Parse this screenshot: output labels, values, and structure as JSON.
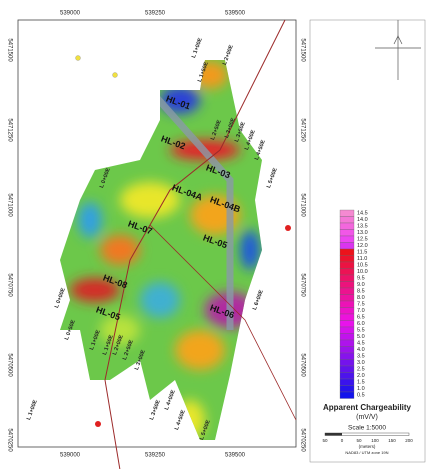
{
  "axes": {
    "top": [
      "539000",
      "539250",
      "539500"
    ],
    "bottom": [
      "539000",
      "539250",
      "539500"
    ],
    "left": [
      "5471500",
      "5471250",
      "5471000",
      "5470750",
      "5470500",
      "5470250"
    ],
    "right": [
      "5471500",
      "5471250",
      "5471000",
      "5470750",
      "5470500",
      "5470250"
    ]
  },
  "lines": [
    "L 1+00E",
    "L 2+00E",
    "L 1+50E",
    "L 2+50E",
    "L 3+00E",
    "L 3+50E",
    "L 4+00E",
    "L 4+50E",
    "L 5+00E",
    "L 0+00E",
    "L 6+00E",
    "L 0+00E",
    "L 0+50E",
    "L 1+00E",
    "L 1+50E",
    "L 2+00E",
    "L 2+50E",
    "L 3+00E",
    "L 3+50E",
    "L 4+00E",
    "L 4+50E",
    "L 5+00E",
    "L 1+00E"
  ],
  "zones": [
    "HL-01",
    "HL-02",
    "HL-03",
    "HL-04A",
    "HL-04B",
    "HL-07",
    "HL-05",
    "HL-08",
    "HL-05",
    "HL-06"
  ],
  "legend": {
    "title": "Apparent Chargeability",
    "unit": "(mV/V)",
    "values": [
      "14.5",
      "14.0",
      "13.5",
      "13.0",
      "12.5",
      "12.0",
      "11.5",
      "11.0",
      "10.5",
      "10.0",
      "9.5",
      "9.0",
      "8.5",
      "8.0",
      "7.5",
      "7.0",
      "6.5",
      "6.0",
      "5.5",
      "5.0",
      "4.5",
      "4.0",
      "3.5",
      "3.0",
      "2.5",
      "2.0",
      "1.5",
      "1.0",
      "0.5"
    ]
  },
  "scale": {
    "title": "Scale 1:5000",
    "ticks": [
      "50",
      "0",
      "50",
      "100",
      "150",
      "200"
    ],
    "unit": "(meters)",
    "datum": "NAD83 / UTM zone 19N"
  }
}
